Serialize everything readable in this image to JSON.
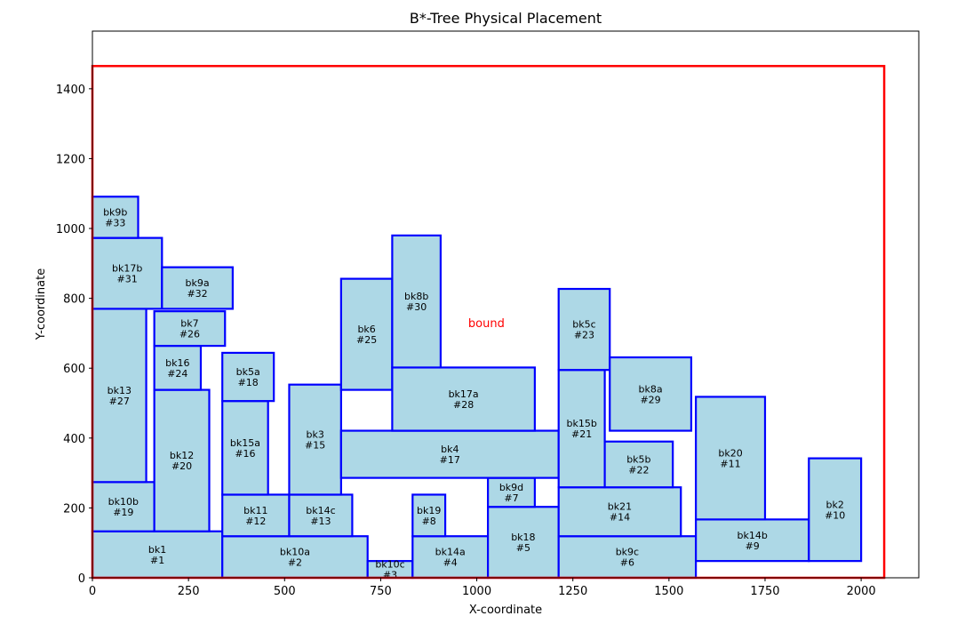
{
  "chart_data": {
    "type": "rectangle-placement",
    "title": "B*-Tree Physical Placement",
    "xlabel": "X-coordinate",
    "ylabel": "Y-coordinate",
    "xlim": [
      0,
      2150
    ],
    "ylim": [
      0,
      1565
    ],
    "xticks": [
      0,
      250,
      500,
      750,
      1000,
      1250,
      1500,
      1750,
      2000
    ],
    "yticks": [
      0,
      200,
      400,
      600,
      800,
      1000,
      1200,
      1400
    ],
    "grid": false,
    "colors": {
      "block_fill": "#add8e6",
      "block_edge": "#0000ff",
      "bound": "#ff0000"
    },
    "bound": {
      "label": "bound",
      "x": 0,
      "y": 0,
      "width": 2060,
      "height": 1465,
      "label_pos": [
        1025,
        730
      ]
    },
    "blocks": [
      {
        "name": "bk1",
        "id": "#1",
        "x": 0,
        "y": 0,
        "w": 338,
        "h": 133
      },
      {
        "name": "bk10a",
        "id": "#2",
        "x": 338,
        "y": 0,
        "w": 378,
        "h": 119
      },
      {
        "name": "bk10c",
        "id": "#3",
        "x": 716,
        "y": 0,
        "w": 117,
        "h": 48
      },
      {
        "name": "bk14a",
        "id": "#4",
        "x": 833,
        "y": 0,
        "w": 196,
        "h": 119
      },
      {
        "name": "bk18",
        "id": "#5",
        "x": 1029,
        "y": 0,
        "w": 184,
        "h": 203
      },
      {
        "name": "bk9c",
        "id": "#6",
        "x": 1213,
        "y": 0,
        "w": 357,
        "h": 119
      },
      {
        "name": "bk9d",
        "id": "#7",
        "x": 1029,
        "y": 203,
        "w": 122,
        "h": 83
      },
      {
        "name": "bk19",
        "id": "#8",
        "x": 833,
        "y": 119,
        "w": 85,
        "h": 119
      },
      {
        "name": "bk14b",
        "id": "#9",
        "x": 1570,
        "y": 48,
        "w": 294,
        "h": 119
      },
      {
        "name": "bk2",
        "id": "#10",
        "x": 1864,
        "y": 48,
        "w": 136,
        "h": 294
      },
      {
        "name": "bk20",
        "id": "#11",
        "x": 1570,
        "y": 167,
        "w": 180,
        "h": 351
      },
      {
        "name": "bk11",
        "id": "#12",
        "x": 338,
        "y": 119,
        "w": 174,
        "h": 119
      },
      {
        "name": "bk14c",
        "id": "#13",
        "x": 512,
        "y": 119,
        "w": 164,
        "h": 119
      },
      {
        "name": "bk21",
        "id": "#14",
        "x": 1213,
        "y": 119,
        "w": 318,
        "h": 140
      },
      {
        "name": "bk3",
        "id": "#15",
        "x": 512,
        "y": 238,
        "w": 135,
        "h": 315
      },
      {
        "name": "bk15a",
        "id": "#16",
        "x": 338,
        "y": 238,
        "w": 119,
        "h": 268
      },
      {
        "name": "bk4",
        "id": "#17",
        "x": 647,
        "y": 286,
        "w": 566,
        "h": 135
      },
      {
        "name": "bk5a",
        "id": "#18",
        "x": 338,
        "y": 506,
        "w": 134,
        "h": 138
      },
      {
        "name": "bk10b",
        "id": "#19",
        "x": 0,
        "y": 133,
        "w": 161,
        "h": 141
      },
      {
        "name": "bk12",
        "id": "#20",
        "x": 161,
        "y": 133,
        "w": 143,
        "h": 405
      },
      {
        "name": "bk15b",
        "id": "#21",
        "x": 1213,
        "y": 259,
        "w": 120,
        "h": 336
      },
      {
        "name": "bk5b",
        "id": "#22",
        "x": 1333,
        "y": 259,
        "w": 177,
        "h": 131
      },
      {
        "name": "bk5c",
        "id": "#23",
        "x": 1213,
        "y": 595,
        "w": 133,
        "h": 232
      },
      {
        "name": "bk16",
        "id": "#24",
        "x": 161,
        "y": 538,
        "w": 121,
        "h": 126
      },
      {
        "name": "bk6",
        "id": "#25",
        "x": 647,
        "y": 538,
        "w": 133,
        "h": 318
      },
      {
        "name": "bk7",
        "id": "#26",
        "x": 161,
        "y": 664,
        "w": 184,
        "h": 99
      },
      {
        "name": "bk13",
        "id": "#27",
        "x": 0,
        "y": 274,
        "w": 140,
        "h": 496
      },
      {
        "name": "bk17a",
        "id": "#28",
        "x": 780,
        "y": 421,
        "w": 371,
        "h": 181
      },
      {
        "name": "bk8a",
        "id": "#29",
        "x": 1346,
        "y": 421,
        "w": 212,
        "h": 210
      },
      {
        "name": "bk8b",
        "id": "#30",
        "x": 780,
        "y": 602,
        "w": 126,
        "h": 378
      },
      {
        "name": "bk17b",
        "id": "#31",
        "x": 0,
        "y": 770,
        "w": 181,
        "h": 203
      },
      {
        "name": "bk9a",
        "id": "#32",
        "x": 181,
        "y": 770,
        "w": 184,
        "h": 119
      },
      {
        "name": "bk9b",
        "id": "#33",
        "x": 0,
        "y": 973,
        "w": 119,
        "h": 118
      }
    ]
  }
}
